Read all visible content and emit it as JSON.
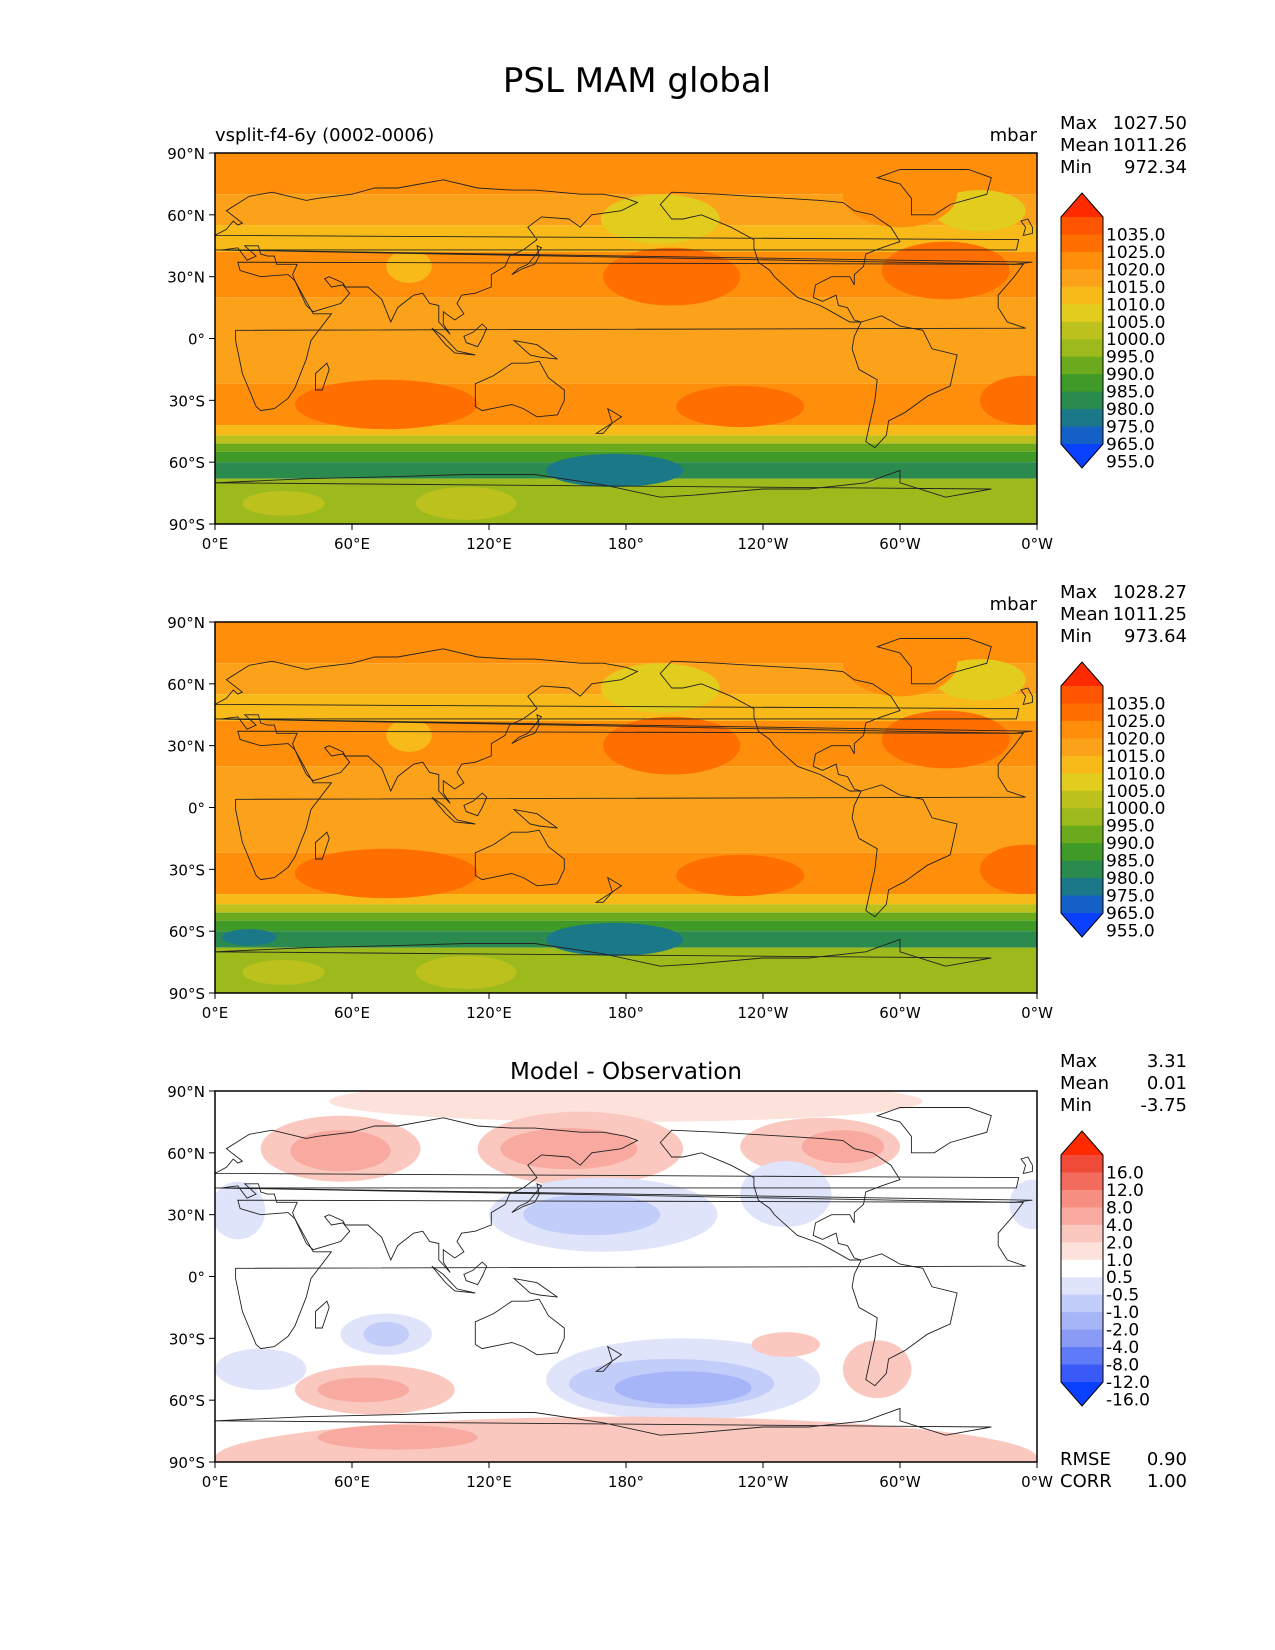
{
  "title": "PSL MAM global",
  "panels": [
    {
      "left_label": "vsplit-f4-6y (0002-0006)",
      "center_label": "",
      "units": "mbar",
      "stats": [
        {
          "label": "Max",
          "value": "1027.50"
        },
        {
          "label": "Mean",
          "value": "1011.26"
        },
        {
          "label": "Min",
          "value": "972.34"
        }
      ],
      "colorbar": "abs"
    },
    {
      "left_label": "",
      "center_label": "",
      "units": "mbar",
      "stats": [
        {
          "label": "Max",
          "value": "1028.27"
        },
        {
          "label": "Mean",
          "value": "1011.25"
        },
        {
          "label": "Min",
          "value": "973.64"
        }
      ],
      "colorbar": "abs"
    },
    {
      "left_label": "",
      "center_label": "Model - Observation",
      "units": "",
      "stats": [
        {
          "label": "Max",
          "value": "3.31"
        },
        {
          "label": "Mean",
          "value": "0.01"
        },
        {
          "label": "Min",
          "value": "-3.75"
        }
      ],
      "colorbar": "diff",
      "extra_stats": [
        {
          "label": "RMSE",
          "value": "0.90"
        },
        {
          "label": "CORR",
          "value": "1.00"
        }
      ]
    }
  ],
  "lat_ticks": [
    "90°N",
    "60°N",
    "30°N",
    "0°",
    "30°S",
    "60°S",
    "90°S"
  ],
  "lon_ticks": [
    "0°E",
    "60°E",
    "120°E",
    "180°",
    "120°W",
    "60°W",
    "0°W"
  ],
  "colorbars": {
    "abs": {
      "labels": [
        "1035.0",
        "1025.0",
        "1020.0",
        "1015.0",
        "1010.0",
        "1005.0",
        "1000.0",
        "995.0",
        "990.0",
        "985.0",
        "980.0",
        "975.0",
        "965.0",
        "955.0"
      ],
      "colors": [
        "#ff2a00",
        "#ff5500",
        "#ff6f00",
        "#ff8e0a",
        "#fba21a",
        "#f7ba18",
        "#e2cc1d",
        "#bdc11e",
        "#9cba1c",
        "#6aaa1c",
        "#3f9a28",
        "#2b8a4e",
        "#1a7888",
        "#1560c6",
        "#0a40ff"
      ]
    },
    "diff": {
      "labels": [
        "16.0",
        "12.0",
        "8.0",
        "4.0",
        "2.0",
        "1.0",
        "0.5",
        "-0.5",
        "-1.0",
        "-2.0",
        "-4.0",
        "-8.0",
        "-12.0",
        "-16.0"
      ],
      "colors": [
        "#ff2a00",
        "#f04a38",
        "#f36b5c",
        "#f68e82",
        "#f8aaa0",
        "#fbc8c0",
        "#fde2dc",
        "#ffffff",
        "#dfe4fb",
        "#c3cdfa",
        "#a6b4f8",
        "#8a9bf6",
        "#5f7bf7",
        "#3a5af8",
        "#0a40ff"
      ]
    }
  },
  "map_palette": {
    "ocean_high": "#fba21a",
    "land_continent": "#ff8e0a",
    "subtropical_high": "#ff6f00",
    "southern_ocean": "#3f9a28",
    "low": "#1a7888",
    "coastline": "#222222"
  }
}
